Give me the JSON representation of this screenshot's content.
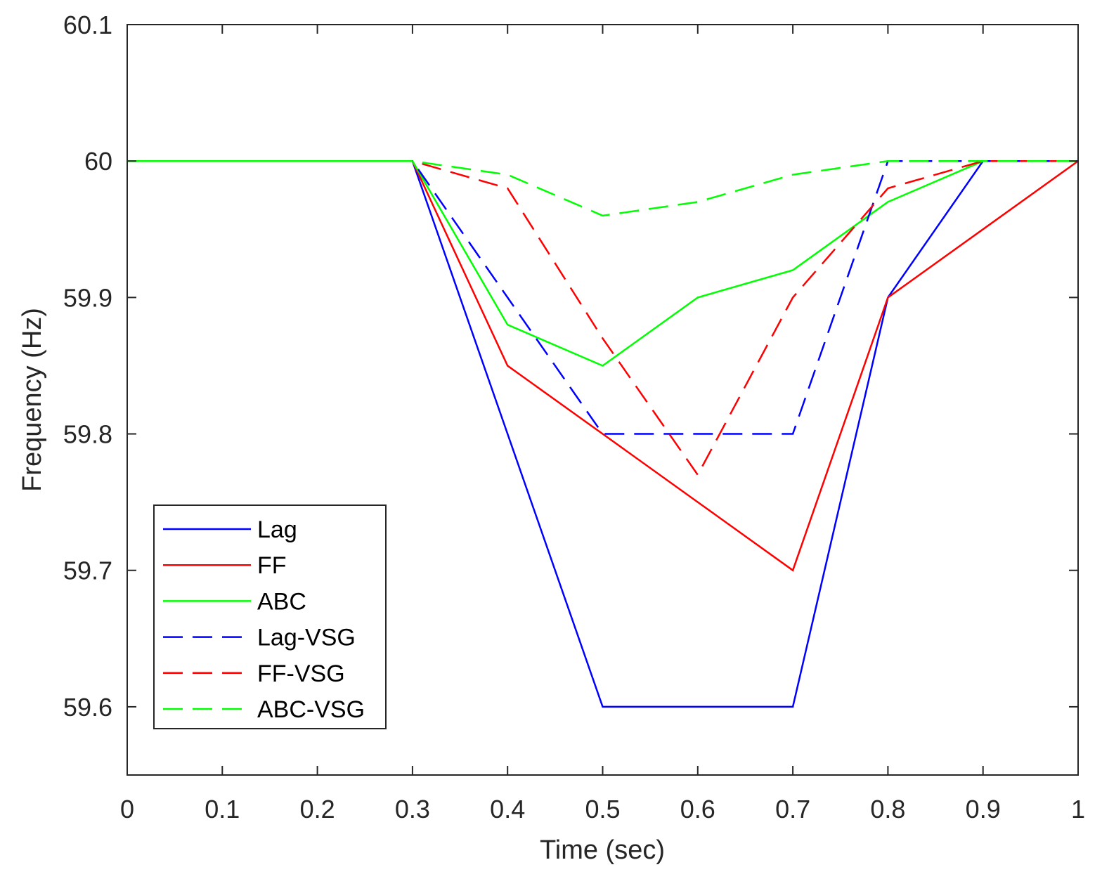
{
  "chart_data": {
    "type": "line",
    "title": "",
    "xlabel": "Time (sec)",
    "ylabel": "Frequency (Hz)",
    "xlim": [
      0,
      1
    ],
    "ylim": [
      59.55,
      60.1
    ],
    "xticks": [
      0,
      0.1,
      0.2,
      0.3,
      0.4,
      0.5,
      0.6,
      0.7,
      0.8,
      0.9,
      1
    ],
    "xtick_labels": [
      "0",
      "0.1",
      "0.2",
      "0.3",
      "0.4",
      "0.5",
      "0.6",
      "0.7",
      "0.8",
      "0.9",
      "1"
    ],
    "yticks": [
      59.6,
      59.7,
      59.8,
      59.9,
      60,
      60.1
    ],
    "ytick_labels": [
      "59.6",
      "59.7",
      "59.8",
      "59.9",
      "60",
      "60.1"
    ],
    "grid": false,
    "legend_position": "bottom-left",
    "x": [
      0,
      0.3,
      0.4,
      0.5,
      0.6,
      0.7,
      0.8,
      0.9,
      1
    ],
    "series": [
      {
        "name": "Lag",
        "color": "#0000ff",
        "style": "solid",
        "values": [
          60,
          60,
          59.8,
          59.6,
          59.6,
          59.6,
          59.9,
          60,
          60
        ]
      },
      {
        "name": "FF",
        "color": "#ff0000",
        "style": "solid",
        "values": [
          60,
          60,
          59.85,
          59.8,
          59.75,
          59.7,
          59.9,
          59.95,
          60
        ]
      },
      {
        "name": "ABC",
        "color": "#00ff00",
        "style": "solid",
        "values": [
          60,
          60,
          59.88,
          59.85,
          59.9,
          59.92,
          59.97,
          60,
          60
        ]
      },
      {
        "name": "Lag-VSG",
        "color": "#0000ff",
        "style": "dashed",
        "values": [
          60,
          60,
          59.9,
          59.8,
          59.8,
          59.8,
          60,
          60,
          60
        ]
      },
      {
        "name": "FF-VSG",
        "color": "#ff0000",
        "style": "dashed",
        "values": [
          60,
          60,
          59.98,
          59.87,
          59.77,
          59.9,
          59.98,
          60,
          60
        ]
      },
      {
        "name": "ABC-VSG",
        "color": "#00ff00",
        "style": "dashed",
        "values": [
          60,
          60,
          59.99,
          59.96,
          59.97,
          59.99,
          60,
          60,
          60
        ]
      }
    ]
  }
}
